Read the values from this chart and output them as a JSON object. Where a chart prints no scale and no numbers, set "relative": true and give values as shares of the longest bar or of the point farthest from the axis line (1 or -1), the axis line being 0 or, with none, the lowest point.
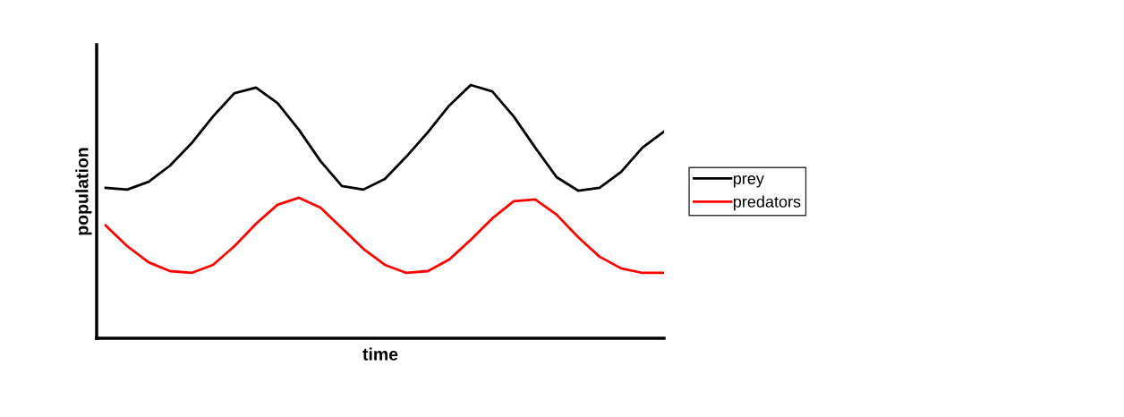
{
  "chart_data": {
    "type": "line",
    "relative": true,
    "xlabel": "time",
    "ylabel": "population",
    "legend": "right",
    "grid": false,
    "marker": "none",
    "line_style": "solid",
    "categories": [
      null,
      null,
      null,
      null,
      null,
      null,
      null,
      null,
      null,
      null,
      null,
      null,
      null,
      null,
      null,
      null,
      null,
      null,
      null,
      null,
      null,
      null,
      null,
      null,
      null,
      null,
      null
    ],
    "series": [
      {
        "name": "prey",
        "color": "#000000",
        "values": [
          0.594,
          0.587,
          0.618,
          0.682,
          0.77,
          0.876,
          0.968,
          0.99,
          0.929,
          0.823,
          0.7,
          0.601,
          0.587,
          0.629,
          0.717,
          0.813,
          0.919,
          1.0,
          0.975,
          0.876,
          0.753,
          0.636,
          0.583,
          0.594,
          0.657,
          0.753,
          0.816
        ]
      },
      {
        "name": "predators",
        "color": "#ff0000",
        "values": [
          0.445,
          0.364,
          0.3,
          0.265,
          0.258,
          0.29,
          0.364,
          0.452,
          0.527,
          0.555,
          0.516,
          0.435,
          0.353,
          0.29,
          0.258,
          0.265,
          0.311,
          0.389,
          0.473,
          0.541,
          0.548,
          0.488,
          0.399,
          0.322,
          0.276,
          0.258,
          0.258
        ]
      }
    ]
  }
}
